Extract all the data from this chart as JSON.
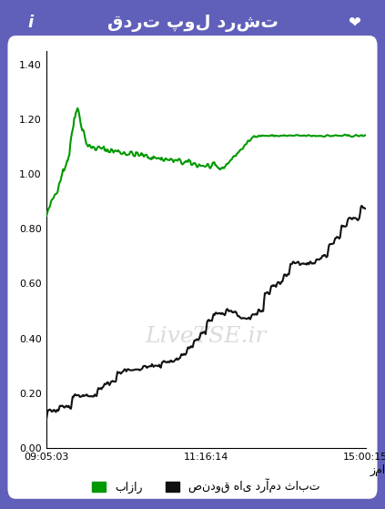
{
  "title": "قدرت پول درشت",
  "xlabel": "زمان",
  "ylabel": "",
  "background_color": "#ffffff",
  "outer_background": "#6b52c8",
  "yticks": [
    0.0,
    0.2,
    0.4,
    0.6,
    0.8,
    1.0,
    1.2,
    1.4
  ],
  "ylim": [
    0.0,
    1.45
  ],
  "xtick_labels": [
    "09:05:03",
    "11:16:14",
    "15:00:15"
  ],
  "watermark": "LiveTSE.ir",
  "legend_bazar": "بازار",
  "legend_fund": "صندوق های درآمد ثابت",
  "green_color": "#009900",
  "black_color": "#111111",
  "watermark_color": "#cccccc"
}
